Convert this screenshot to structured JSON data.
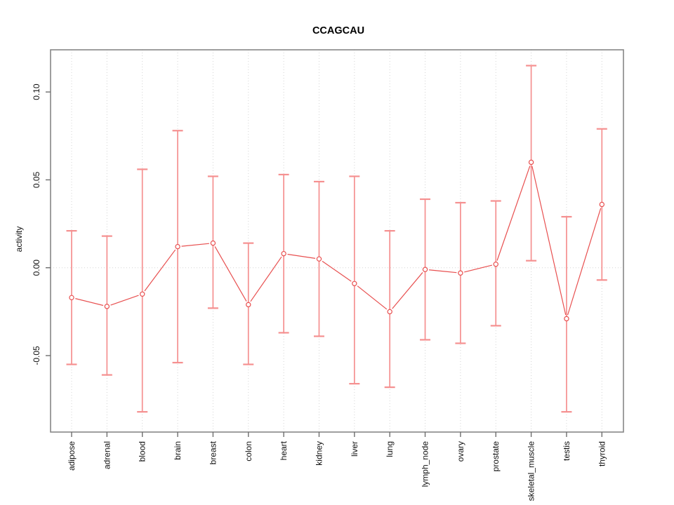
{
  "chart_data": {
    "type": "line",
    "title": "CCAGCAU",
    "xlabel": "",
    "ylabel": "activity",
    "categories": [
      "adipose",
      "adrenal",
      "blood",
      "brain",
      "breast",
      "colon",
      "heart",
      "kidney",
      "liver",
      "lung",
      "lymph_node",
      "ovary",
      "prostate",
      "skeletal_muscle",
      "testis",
      "thyroid"
    ],
    "series": [
      {
        "name": "activity",
        "values": [
          -0.017,
          -0.022,
          -0.015,
          0.012,
          0.014,
          -0.021,
          0.008,
          0.005,
          -0.009,
          -0.025,
          -0.001,
          -0.003,
          0.002,
          0.06,
          -0.029,
          0.036
        ],
        "lower": [
          -0.055,
          -0.061,
          -0.082,
          -0.054,
          -0.023,
          -0.055,
          -0.037,
          -0.039,
          -0.066,
          -0.068,
          -0.041,
          -0.043,
          -0.033,
          0.004,
          -0.082,
          -0.007
        ],
        "upper": [
          0.021,
          0.018,
          0.056,
          0.078,
          0.052,
          0.014,
          0.053,
          0.049,
          0.052,
          0.021,
          0.039,
          0.037,
          0.038,
          0.115,
          0.029,
          0.079
        ]
      }
    ],
    "ylim": [
      -0.0935,
      0.124
    ],
    "yticks": [
      -0.05,
      0,
      0.05,
      0.1
    ],
    "ytick_labels": [
      "-0.05",
      "0.00",
      "0.05",
      "0.10"
    ],
    "grid": "vertical dotted line at each category; horizontal dotted line at y=0",
    "legend_position": "none",
    "marker": "open-circle",
    "colors": {
      "series_line": "#e85050",
      "error_bar": "#f59090",
      "gridline": "#d4d4d4",
      "box_border": "#878787",
      "tick": "#6e6e6e",
      "text": "#111111",
      "background": "#ffffff"
    }
  }
}
